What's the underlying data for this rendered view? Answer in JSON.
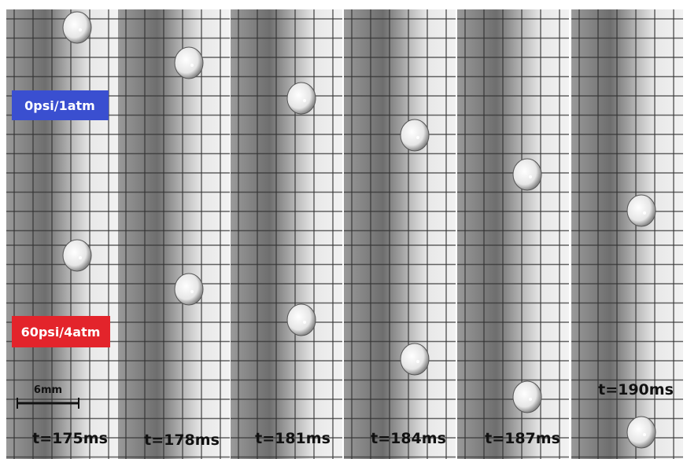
{
  "rows": [
    {
      "label": "0psi/1atm"
    },
    {
      "label": "60psi/4atm"
    }
  ],
  "scale_bar": "6mm",
  "times": [
    "t=175ms",
    "t=178ms",
    "t=181ms",
    "t=184ms",
    "t=187ms",
    "t=190ms"
  ]
}
